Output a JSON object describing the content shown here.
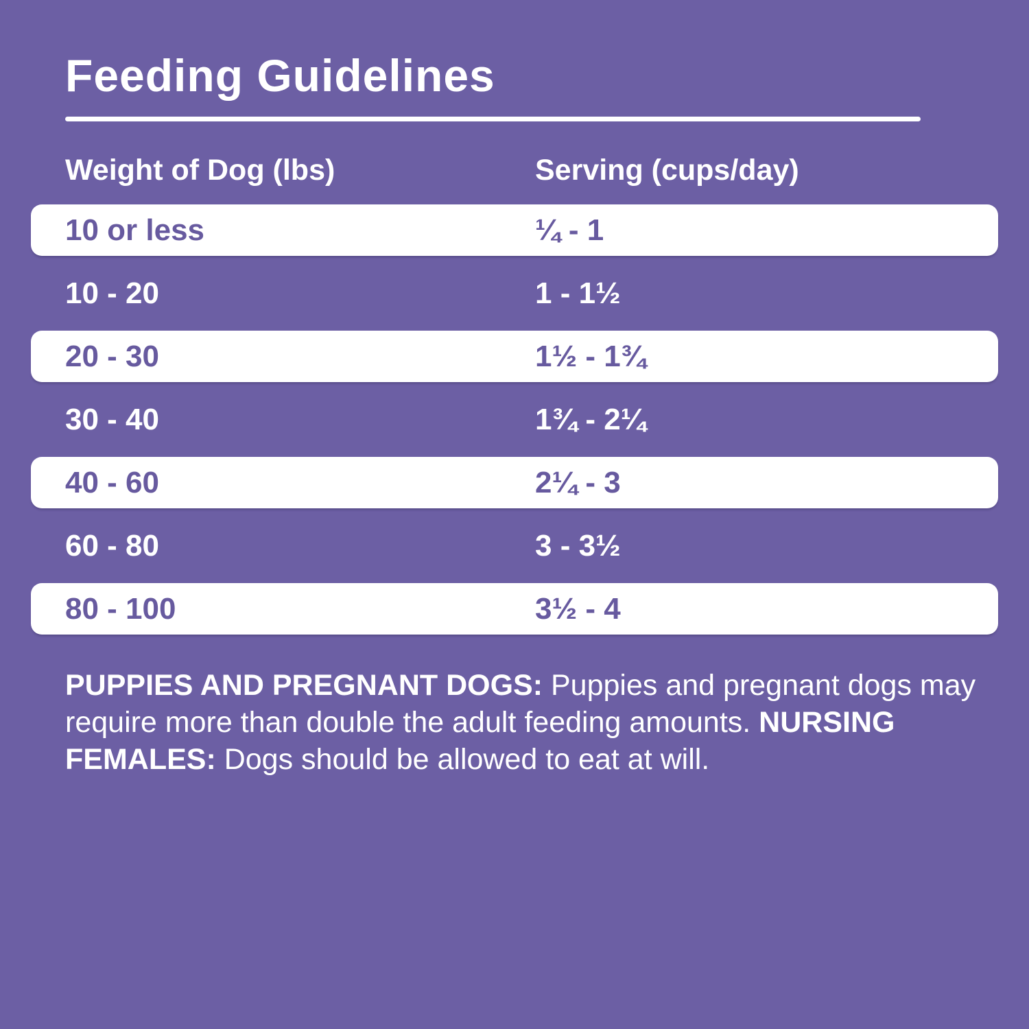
{
  "page": {
    "title": "Feeding Guidelines",
    "colors": {
      "background": "#6c5fa4",
      "text_on_purple": "#ffffff",
      "row_background": "#ffffff",
      "text_on_white": "#675a9f"
    }
  },
  "table": {
    "columns": [
      {
        "label": "Weight of Dog (lbs)"
      },
      {
        "label": "Serving (cups/day)"
      }
    ],
    "rows": [
      {
        "weight": "10 or less",
        "serving": "¼ - 1",
        "style": "white"
      },
      {
        "weight": "10 - 20",
        "serving": "1 - 1½",
        "style": "purple"
      },
      {
        "weight": "20 - 30",
        "serving": "1½ - 1¾",
        "style": "white"
      },
      {
        "weight": "30 - 40",
        "serving": "1¾ - 2¼",
        "style": "purple"
      },
      {
        "weight": "40 - 60",
        "serving": "2¼ - 3",
        "style": "white"
      },
      {
        "weight": "60 - 80",
        "serving": "3 - 3½",
        "style": "purple"
      },
      {
        "weight": "80 - 100",
        "serving": "3½ - 4",
        "style": "white"
      }
    ]
  },
  "footnote": {
    "segments": [
      {
        "text": "PUPPIES AND PREGNANT DOGS: ",
        "bold": true
      },
      {
        "text": "Puppies and pregnant dogs may require more than double the adult feeding amounts. ",
        "bold": false
      },
      {
        "text": "NURSING FEMALES: ",
        "bold": true
      },
      {
        "text": "Dogs should be allowed to eat at will.",
        "bold": false
      }
    ]
  }
}
